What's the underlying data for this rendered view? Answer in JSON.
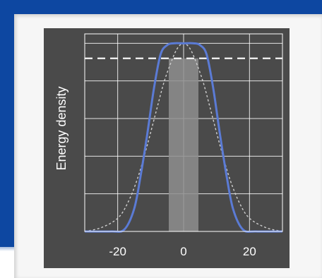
{
  "chart_data": {
    "type": "line",
    "ylabel": "Energy density",
    "xlabel": "",
    "xlim": [
      -30,
      30
    ],
    "ylim": [
      0,
      1.05
    ],
    "xticks": [
      -20,
      0,
      20
    ],
    "xtick_labels": [
      "-20",
      "0",
      "20"
    ],
    "grid": true,
    "series": [
      {
        "style": "solid",
        "color": "#5b7bd5",
        "x": [
          -30,
          -22,
          -18,
          -15,
          -13,
          -11,
          -9,
          -7,
          -5,
          -3,
          0,
          3,
          5,
          7,
          9,
          11,
          13,
          15,
          18,
          22,
          30
        ],
        "y": [
          0.0,
          0.0,
          0.01,
          0.12,
          0.3,
          0.52,
          0.76,
          0.94,
          0.99,
          1.0,
          1.0,
          1.0,
          0.99,
          0.94,
          0.76,
          0.52,
          0.3,
          0.12,
          0.01,
          0.0,
          0.0
        ]
      },
      {
        "style": "dotted",
        "color": "#cfcfcf",
        "x": [
          -30,
          -25,
          -20,
          -17,
          -14,
          -11,
          -8,
          -6,
          -4,
          -2,
          0,
          2,
          4,
          6,
          8,
          11,
          14,
          17,
          20,
          25,
          30
        ],
        "y": [
          0.0,
          0.02,
          0.07,
          0.15,
          0.28,
          0.46,
          0.66,
          0.79,
          0.89,
          0.97,
          1.0,
          0.97,
          0.89,
          0.79,
          0.66,
          0.46,
          0.28,
          0.15,
          0.07,
          0.02,
          0.0
        ]
      }
    ],
    "threshold_line": {
      "y": 0.92,
      "style": "dashed",
      "color": "#ffffff"
    },
    "shaded_band": {
      "x_range": [
        -4.5,
        4.5
      ],
      "y_range": [
        0,
        0.92
      ],
      "color": "#8e8e8e"
    }
  }
}
